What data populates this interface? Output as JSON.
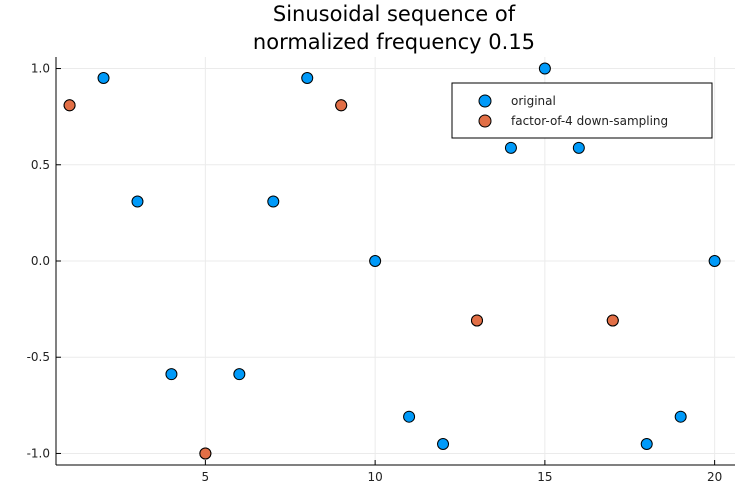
{
  "chart_data": {
    "type": "scatter",
    "title_lines": [
      "Sinusoidal sequence of",
      "normalized frequency 0.15"
    ],
    "xlabel": "",
    "ylabel": "",
    "xlim": [
      0.6,
      20.6
    ],
    "ylim": [
      -1.06,
      1.06
    ],
    "xticks": [
      5,
      10,
      15,
      20
    ],
    "xtick_labels": [
      "5",
      "10",
      "15",
      "20"
    ],
    "yticks": [
      -1.0,
      -0.5,
      0.0,
      0.5,
      1.0
    ],
    "ytick_labels": [
      "-1.0",
      "-0.5",
      "0.0",
      "0.5",
      "1.0"
    ],
    "grid": true,
    "legend_position": "top-right",
    "series": [
      {
        "name": "original",
        "color": "#009af9",
        "x": [
          1,
          2,
          3,
          4,
          5,
          6,
          7,
          8,
          9,
          10,
          11,
          12,
          13,
          14,
          15,
          16,
          17,
          18,
          19,
          20
        ],
        "y": [
          0.809,
          0.951,
          0.309,
          -0.588,
          -1.0,
          -0.588,
          0.309,
          0.951,
          0.809,
          0.0,
          -0.809,
          -0.951,
          -0.309,
          0.588,
          1.0,
          0.588,
          -0.309,
          -0.951,
          -0.809,
          0.0
        ]
      },
      {
        "name": "factor-of-4 down-sampling",
        "color": "#e26f46",
        "x": [
          1,
          5,
          9,
          13,
          17
        ],
        "y": [
          0.809,
          -1.0,
          0.809,
          -0.309,
          -0.309
        ]
      }
    ]
  }
}
